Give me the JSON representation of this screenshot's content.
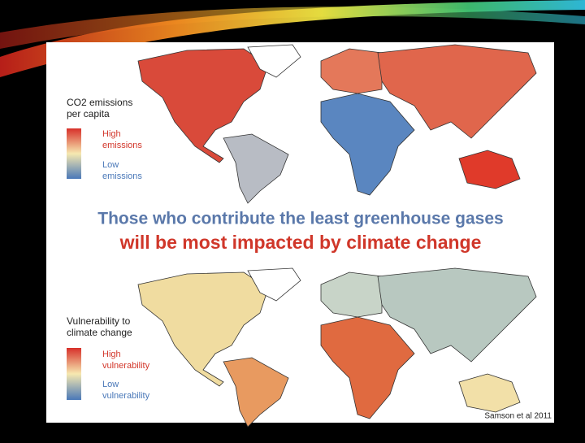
{
  "slide": {
    "top_map": {
      "legend_title": [
        "CO2 emissions",
        "per capita"
      ],
      "high_label": [
        "High",
        "emissions"
      ],
      "low_label": [
        "Low",
        "emissions"
      ]
    },
    "headline": [
      "Those who contribute the least greenhouse gases",
      "will be most impacted by climate change"
    ],
    "bottom_map": {
      "legend_title": [
        "Vulnerability to",
        "climate change"
      ],
      "high_label": [
        "High",
        "vulnerability"
      ],
      "low_label": [
        "Low",
        "vulnerability"
      ]
    },
    "citation": "Samson et al 2011"
  }
}
